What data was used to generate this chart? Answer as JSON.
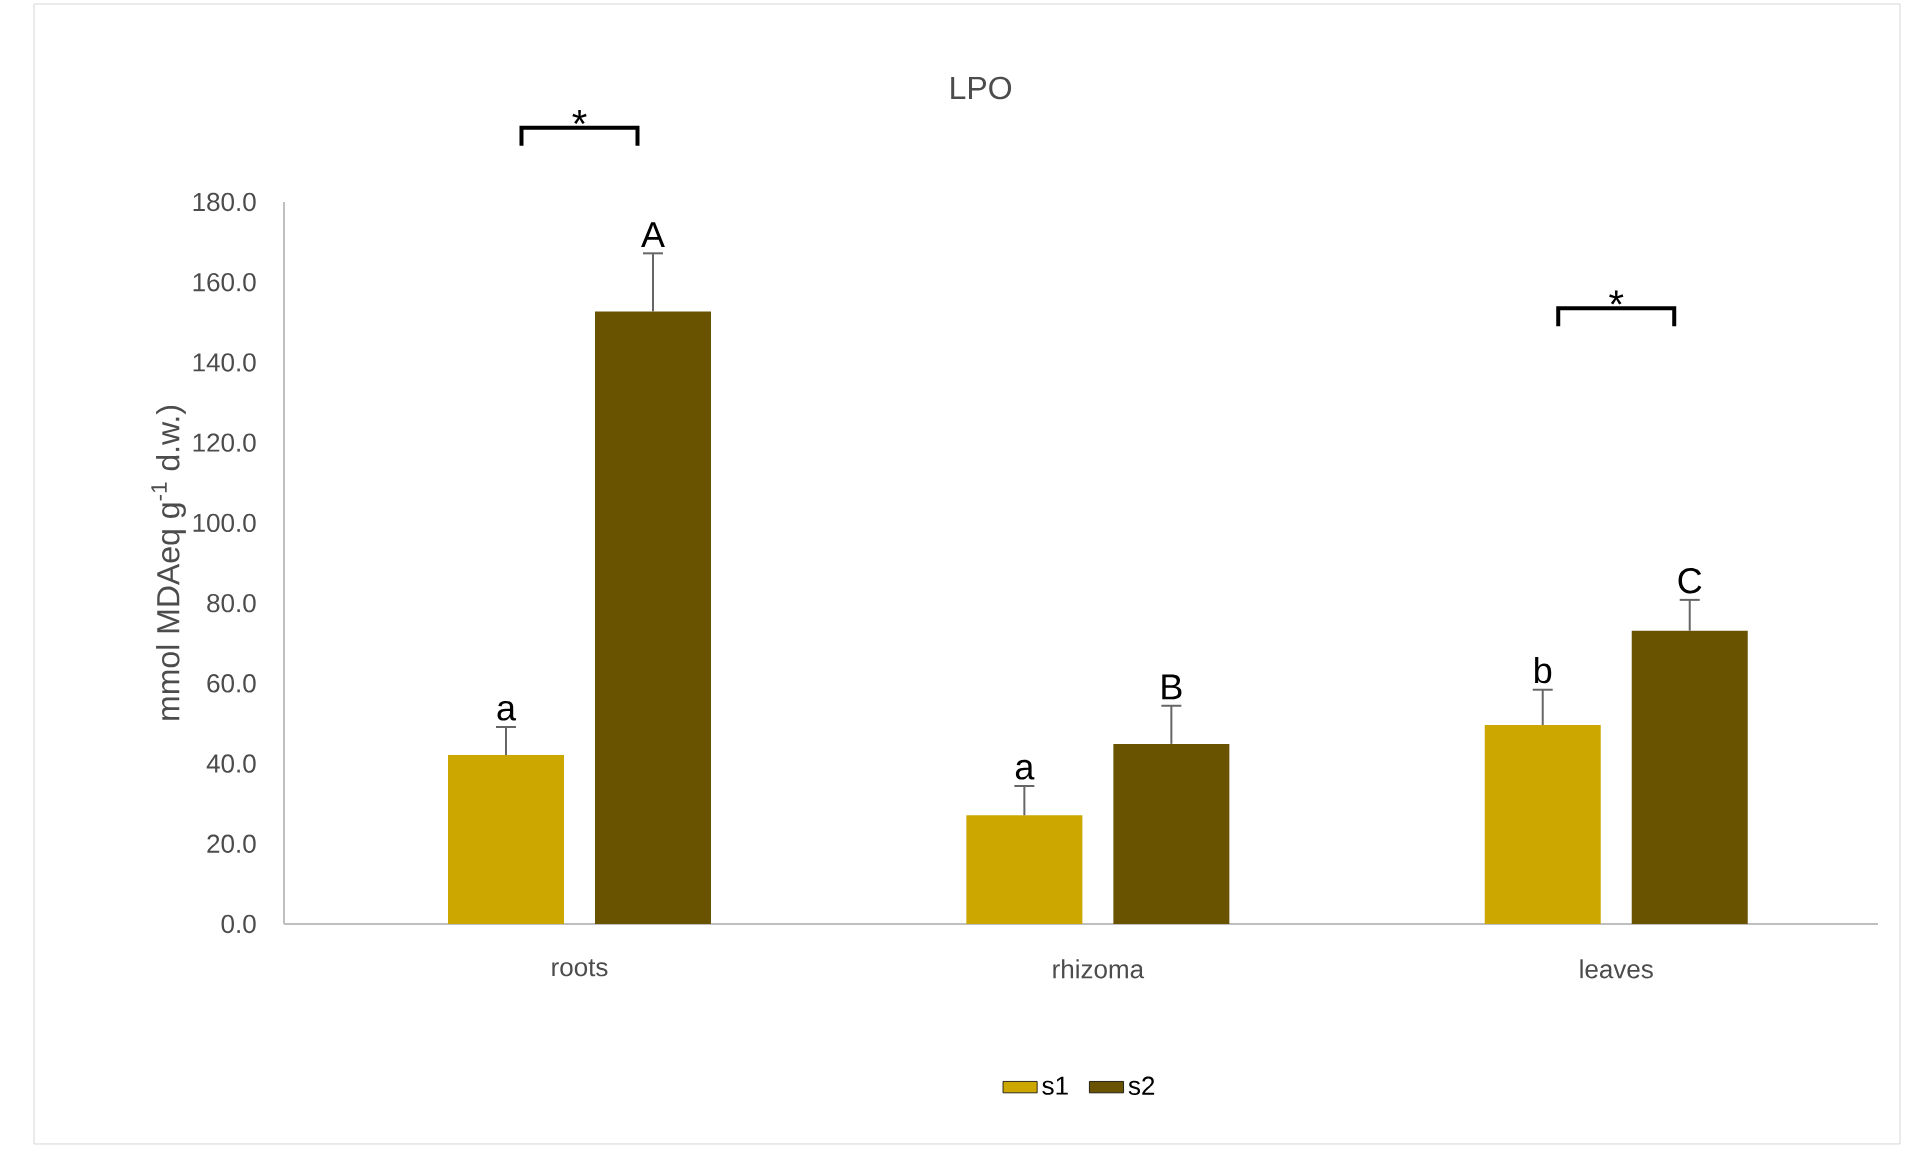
{
  "chart_data": {
    "type": "bar",
    "title": "LPO",
    "ylabel": "mmol MDAeq g$^{-1}$ d.w.)",
    "categories": [
      "roots",
      "rhizoma",
      "leaves"
    ],
    "series": [
      {
        "name": "s1",
        "color": "#cca700",
        "values": [
          42.1,
          27.1,
          49.6
        ],
        "errors": [
          [
            42.1,
            49.1
          ],
          [
            27.1,
            34.4
          ],
          [
            49.6,
            58.4
          ]
        ],
        "value_labels": [
          "a",
          "a",
          "b"
        ]
      },
      {
        "name": "s2",
        "color": "#695200",
        "values": [
          152.7,
          44.9,
          73.1
        ],
        "errors": [
          [
            152.7,
            167.2
          ],
          [
            44.9,
            54.4
          ],
          [
            73.1,
            80.8
          ]
        ],
        "value_labels": [
          "A",
          "B",
          "C"
        ]
      }
    ],
    "ylim": [
      0,
      180
    ],
    "yticks": [
      {
        "value": 0,
        "label": "0.0"
      },
      {
        "value": 20,
        "label": "20.0"
      },
      {
        "value": 40,
        "label": "40.0"
      },
      {
        "value": 60,
        "label": "60.0"
      },
      {
        "value": 80,
        "label": "80.0"
      },
      {
        "value": 100,
        "label": "100.0"
      },
      {
        "value": 120,
        "label": "120.0"
      },
      {
        "value": 140,
        "label": "140.0"
      },
      {
        "value": 160,
        "label": "160.0"
      },
      {
        "value": 180,
        "label": "180.0"
      }
    ],
    "annotations": [
      "*",
      "*"
    ],
    "legend": "bottom"
  }
}
